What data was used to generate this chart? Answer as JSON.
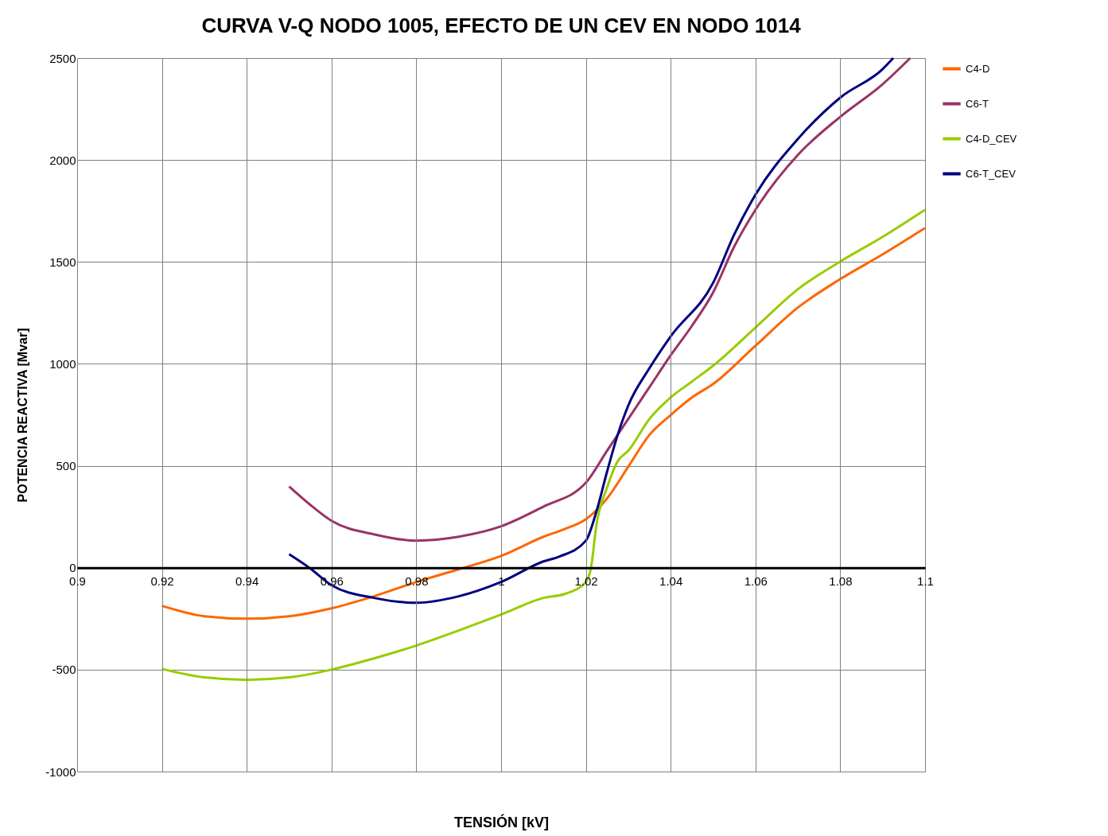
{
  "chart_data": {
    "type": "line",
    "title": "CURVA V-Q NODO 1005,  EFECTO DE UN CEV EN NODO 1014",
    "xlabel": "TENSIÓN  [kV]",
    "ylabel": "POTENCIA REACTIVA [Mvar]",
    "xlim": [
      0.9,
      1.1
    ],
    "xticks": [
      0.9,
      0.92,
      0.94,
      0.96,
      0.98,
      1,
      1.02,
      1.04,
      1.06,
      1.08,
      1.1
    ],
    "ylim": [
      -1000,
      2500
    ],
    "yticks": [
      -1000,
      -500,
      0,
      500,
      1000,
      1500,
      2000,
      2500
    ],
    "grid": true,
    "legend": "right",
    "line_style": "solid",
    "marker": "none",
    "series": [
      {
        "name": "C4-D",
        "color": "#ff6600",
        "x": [
          0.92,
          0.93,
          0.94,
          0.95,
          0.96,
          0.97,
          0.98,
          0.99,
          1.0,
          1.01,
          1.015,
          1.02,
          1.025,
          1.03,
          1.035,
          1.04,
          1.045,
          1.05,
          1.06,
          1.07,
          1.08,
          1.09,
          1.1
        ],
        "values": [
          -187,
          -238,
          -250,
          -238,
          -199,
          -140,
          -70,
          -8,
          58,
          152,
          190,
          238,
          340,
          496,
          652,
          749,
          835,
          901,
          1089,
          1276,
          1416,
          1537,
          1666
        ]
      },
      {
        "name": "C6-T",
        "color": "#993366",
        "x": [
          0.95,
          0.955,
          0.96,
          0.97,
          0.98,
          0.99,
          1.0,
          1.01,
          1.02,
          1.025,
          1.03,
          1.035,
          1.04,
          1.045,
          1.05,
          1.055,
          1.06,
          1.07,
          1.08,
          1.09,
          1.0965
        ],
        "values": [
          398,
          308,
          230,
          164,
          133,
          152,
          203,
          300,
          417,
          574,
          730,
          886,
          1042,
          1186,
          1350,
          1576,
          1756,
          2025,
          2212,
          2372,
          2500
        ]
      },
      {
        "name": "C4-D_CEV",
        "color": "#99cc00",
        "x": [
          0.92,
          0.93,
          0.94,
          0.95,
          0.96,
          0.97,
          0.98,
          0.99,
          1.0,
          1.01,
          1.015,
          1.02,
          1.0212,
          1.0225,
          1.025,
          1.0275,
          1.03,
          1.035,
          1.04,
          1.045,
          1.05,
          1.06,
          1.07,
          1.08,
          1.09,
          1.1
        ],
        "values": [
          -496,
          -538,
          -550,
          -538,
          -500,
          -445,
          -382,
          -308,
          -230,
          -148,
          -129,
          -70,
          0,
          211,
          394,
          523,
          574,
          730,
          835,
          913,
          991,
          1178,
          1366,
          1502,
          1623,
          1756
        ]
      },
      {
        "name": "C6-T_CEV",
        "color": "#000080",
        "x": [
          0.95,
          0.955,
          0.96,
          0.97,
          0.98,
          0.99,
          1.0,
          1.01,
          1.0138,
          1.02,
          1.0225,
          1.025,
          1.0275,
          1.03,
          1.035,
          1.04,
          1.05,
          1.055,
          1.06,
          1.07,
          1.08,
          1.09,
          1.0925
        ],
        "values": [
          66,
          -4,
          -86,
          -148,
          -172,
          -140,
          -70,
          31,
          55,
          133,
          277,
          472,
          652,
          796,
          979,
          1135,
          1397,
          1635,
          1830,
          2103,
          2306,
          2446,
          2500
        ]
      }
    ]
  }
}
